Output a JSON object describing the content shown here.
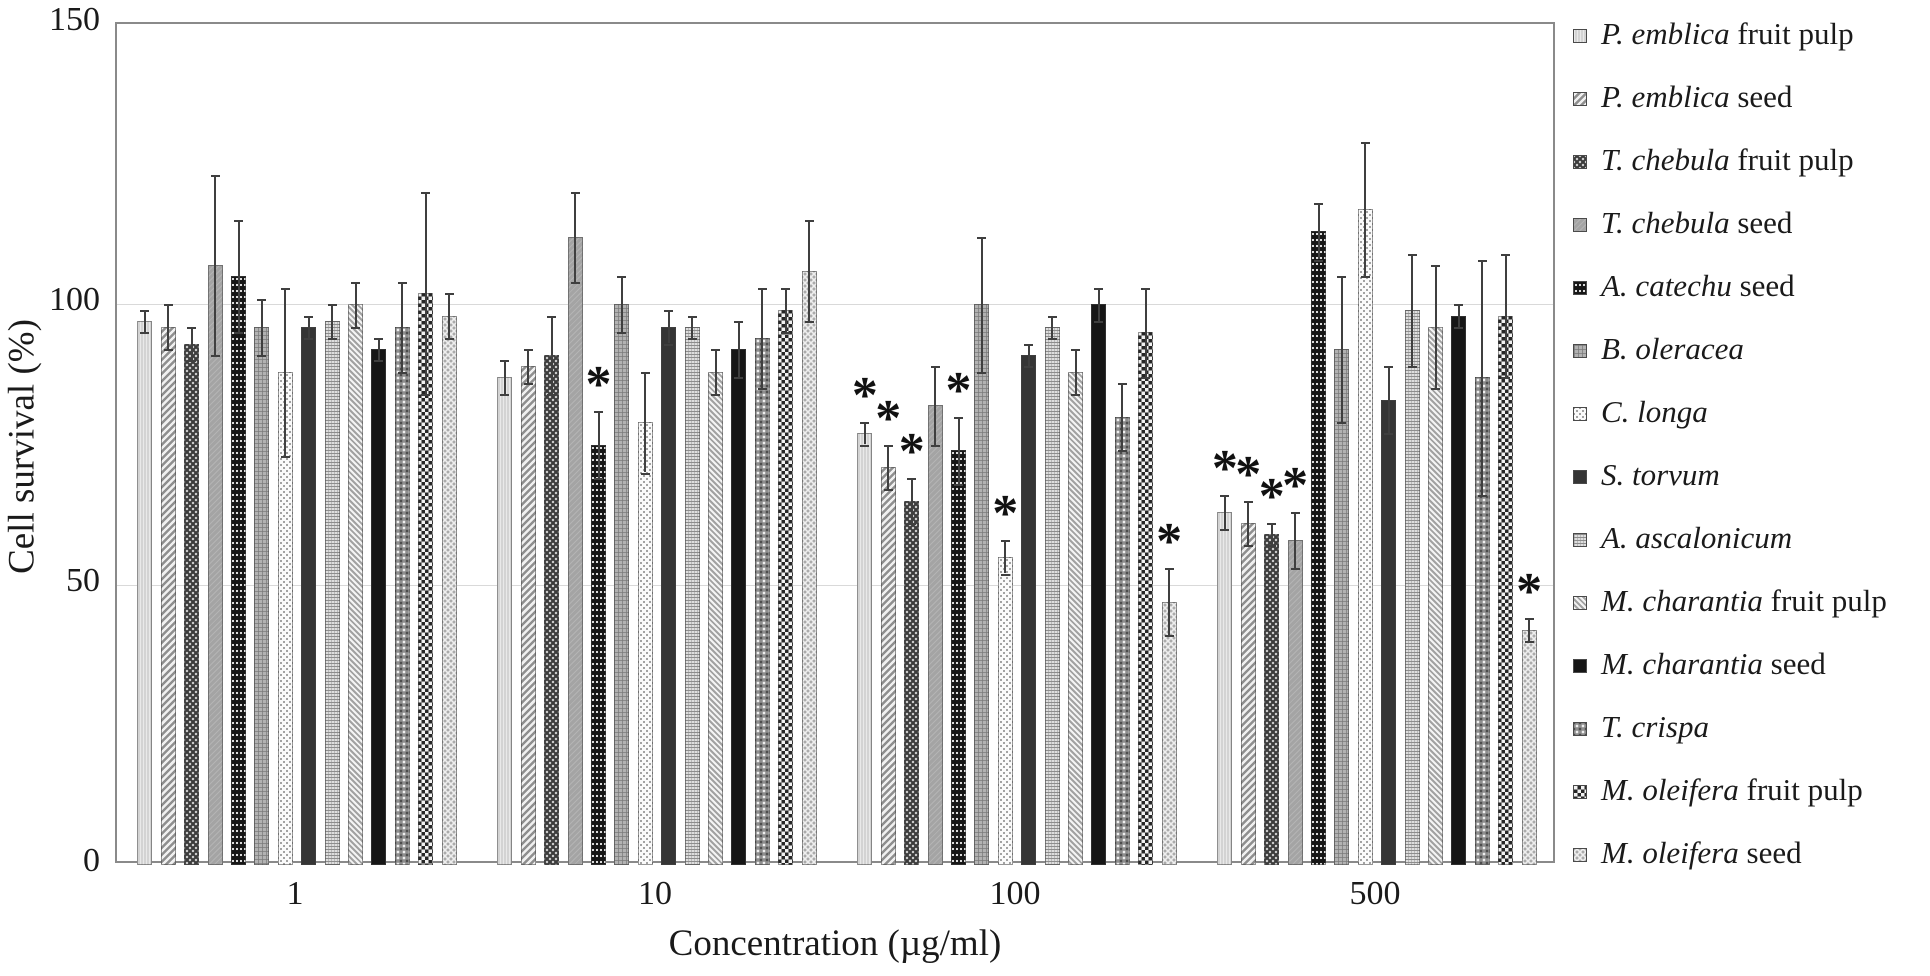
{
  "figure": {
    "background": "#ffffff",
    "frame_color": "#8a8a8a",
    "gridline_color": "#d9d9d9",
    "text_color": "#1a1a1a",
    "significance_marker": "*"
  },
  "chart_data": {
    "type": "bar",
    "title": "",
    "xlabel": "Concentration (µg/ml)",
    "ylabel": "Cell survival (%)",
    "ylim": [
      0,
      150
    ],
    "yticks": [
      0,
      50,
      100,
      150
    ],
    "grid": "horizontal gridlines at 50 and 100",
    "legend_position": "right",
    "error_bars": true,
    "categories": [
      "1",
      "10",
      "100",
      "500"
    ],
    "series": [
      {
        "name_italic": "P. emblica",
        "name_rest": " fruit pulp",
        "pattern": "plain-light",
        "values": [
          97,
          87,
          77,
          63
        ],
        "errors": [
          2,
          3,
          2,
          3
        ],
        "significant": [
          false,
          false,
          true,
          true
        ]
      },
      {
        "name_italic": "P. emblica",
        "name_rest": " seed",
        "pattern": "diag-hatch",
        "values": [
          96,
          89,
          71,
          61
        ],
        "errors": [
          4,
          3,
          4,
          4
        ],
        "significant": [
          false,
          false,
          true,
          true
        ]
      },
      {
        "name_italic": "T. chebula",
        "name_rest": " fruit pulp",
        "pattern": "dark-diamond",
        "values": [
          93,
          91,
          65,
          59
        ],
        "errors": [
          3,
          7,
          4,
          2
        ],
        "significant": [
          false,
          false,
          true,
          true
        ]
      },
      {
        "name_italic": "T. chebula",
        "name_rest": " seed",
        "pattern": "plain-mid",
        "values": [
          107,
          112,
          82,
          58
        ],
        "errors": [
          16,
          8,
          7,
          5
        ],
        "significant": [
          false,
          false,
          false,
          true
        ]
      },
      {
        "name_italic": "A. catechu",
        "name_rest": " seed",
        "pattern": "dark-dots",
        "values": [
          105,
          75,
          74,
          113
        ],
        "errors": [
          10,
          6,
          6,
          5
        ],
        "significant": [
          false,
          true,
          true,
          false
        ]
      },
      {
        "name_italic": "B. oleracea",
        "name_rest": "",
        "pattern": "mid-grid",
        "values": [
          96,
          100,
          100,
          92
        ],
        "errors": [
          5,
          5,
          12,
          13
        ],
        "significant": [
          false,
          false,
          false,
          false
        ]
      },
      {
        "name_italic": "C. longa",
        "name_rest": "",
        "pattern": "light-dots",
        "values": [
          88,
          79,
          55,
          117
        ],
        "errors": [
          15,
          9,
          3,
          12
        ],
        "significant": [
          false,
          false,
          true,
          false
        ]
      },
      {
        "name_italic": "S. torvum",
        "name_rest": "",
        "pattern": "solid-dark",
        "values": [
          96,
          96,
          91,
          83
        ],
        "errors": [
          2,
          3,
          2,
          6
        ],
        "significant": [
          false,
          false,
          false,
          false
        ]
      },
      {
        "name_italic": "A. ascalonicum",
        "name_rest": "",
        "pattern": "line-weave",
        "values": [
          97,
          96,
          96,
          99
        ],
        "errors": [
          3,
          2,
          2,
          10
        ],
        "significant": [
          false,
          false,
          false,
          false
        ]
      },
      {
        "name_italic": "M. charantia",
        "name_rest": " fruit pulp",
        "pattern": "diag-light",
        "values": [
          100,
          88,
          88,
          96
        ],
        "errors": [
          4,
          4,
          4,
          11
        ],
        "significant": [
          false,
          false,
          false,
          false
        ]
      },
      {
        "name_italic": "M. charantia",
        "name_rest": " seed",
        "pattern": "solid-black",
        "values": [
          92,
          92,
          100,
          98
        ],
        "errors": [
          2,
          5,
          3,
          2
        ],
        "significant": [
          false,
          false,
          false,
          false
        ]
      },
      {
        "name_italic": "T. crispa",
        "name_rest": "",
        "pattern": "mid-checker",
        "values": [
          96,
          94,
          80,
          87
        ],
        "errors": [
          8,
          9,
          6,
          21
        ],
        "significant": [
          false,
          false,
          false,
          false
        ]
      },
      {
        "name_italic": "M. oleifera",
        "name_rest": " fruit pulp",
        "pattern": "checkerboard",
        "values": [
          102,
          99,
          95,
          98
        ],
        "errors": [
          18,
          4,
          8,
          11
        ],
        "significant": [
          false,
          false,
          false,
          false
        ]
      },
      {
        "name_italic": "M. oleifera",
        "name_rest": " seed",
        "pattern": "light-checker",
        "values": [
          98,
          106,
          47,
          42
        ],
        "errors": [
          4,
          9,
          6,
          2
        ],
        "significant": [
          false,
          false,
          true,
          true
        ]
      }
    ]
  }
}
